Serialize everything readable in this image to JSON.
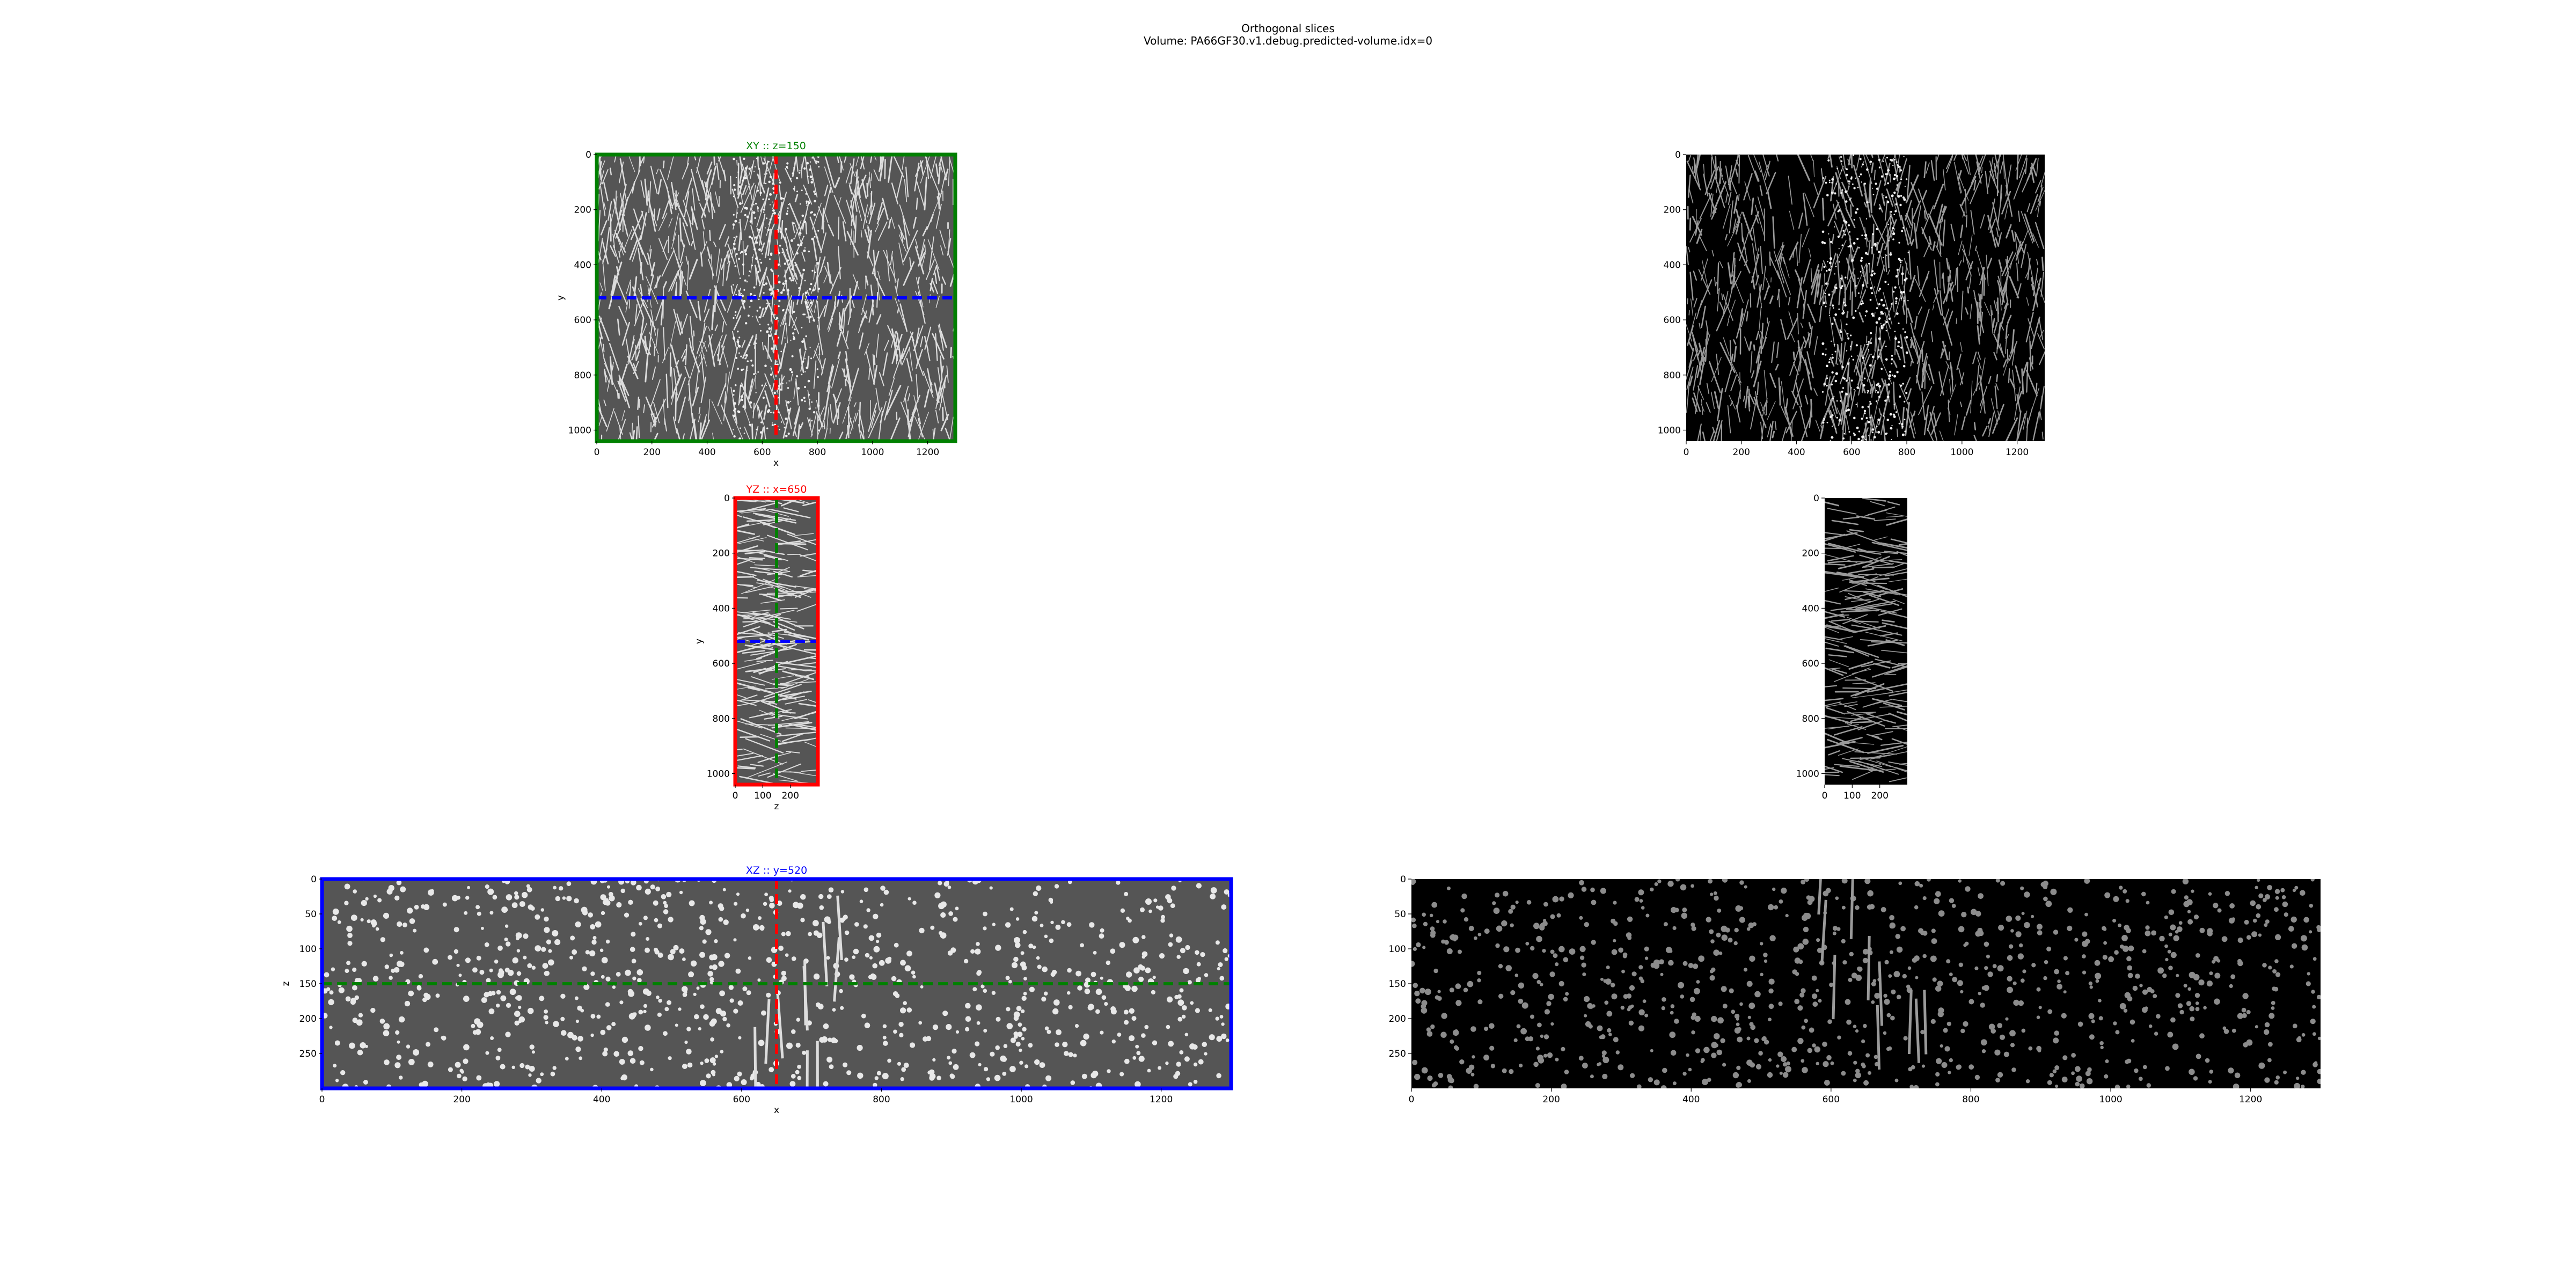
{
  "figure": {
    "title_line1": "Orthogonal slices",
    "title_line2": "Volume: PA66GF30.v1.debug.predicted-volume.idx=0"
  },
  "colors": {
    "xy": "#008000",
    "yz": "#ff0000",
    "xz": "#0000ff",
    "raw_bg": "#555555",
    "pred_bg": "#000000"
  },
  "chart_data": [
    {
      "id": "xy_raw",
      "type": "heatmap",
      "title": "XY :: z=150",
      "title_color": "green",
      "xlabel": "x",
      "ylabel": "y",
      "xlim": [
        0,
        1300
      ],
      "ylim": [
        1040,
        0
      ],
      "xticks": [
        0,
        200,
        400,
        600,
        800,
        1000,
        1200
      ],
      "yticks": [
        0,
        200,
        400,
        600,
        800,
        1000
      ],
      "frame": "green",
      "lines": [
        {
          "orientation": "vertical",
          "value": 650,
          "color": "red",
          "style": "dashed"
        },
        {
          "orientation": "horizontal",
          "value": 520,
          "color": "blue",
          "style": "dashed"
        }
      ]
    },
    {
      "id": "xy_pred",
      "type": "heatmap",
      "title": "",
      "xlabel": "",
      "ylabel": "",
      "xlim": [
        0,
        1300
      ],
      "ylim": [
        1040,
        0
      ],
      "xticks": [
        0,
        200,
        400,
        600,
        800,
        1000,
        1200
      ],
      "yticks": [
        0,
        200,
        400,
        600,
        800,
        1000
      ],
      "frame": "none",
      "lines": []
    },
    {
      "id": "yz_raw",
      "type": "heatmap",
      "title": "YZ :: x=650",
      "title_color": "red",
      "xlabel": "z",
      "ylabel": "y",
      "xlim": [
        0,
        300
      ],
      "ylim": [
        1040,
        0
      ],
      "xticks": [
        0,
        100,
        200
      ],
      "yticks": [
        0,
        200,
        400,
        600,
        800,
        1000
      ],
      "frame": "red",
      "lines": [
        {
          "orientation": "vertical",
          "value": 150,
          "color": "green",
          "style": "dashed"
        },
        {
          "orientation": "horizontal",
          "value": 520,
          "color": "blue",
          "style": "dashed"
        }
      ]
    },
    {
      "id": "yz_pred",
      "type": "heatmap",
      "title": "",
      "xlabel": "",
      "ylabel": "",
      "xlim": [
        0,
        300
      ],
      "ylim": [
        1040,
        0
      ],
      "xticks": [
        0,
        100,
        200
      ],
      "yticks": [
        0,
        200,
        400,
        600,
        800,
        1000
      ],
      "frame": "none",
      "lines": []
    },
    {
      "id": "xz_raw",
      "type": "heatmap",
      "title": "XZ :: y=520",
      "title_color": "blue",
      "xlabel": "x",
      "ylabel": "z",
      "xlim": [
        0,
        1300
      ],
      "ylim": [
        300,
        0
      ],
      "xticks": [
        0,
        200,
        400,
        600,
        800,
        1000,
        1200
      ],
      "yticks": [
        0,
        50,
        100,
        150,
        200,
        250
      ],
      "frame": "blue",
      "lines": [
        {
          "orientation": "vertical",
          "value": 650,
          "color": "red",
          "style": "dashed"
        },
        {
          "orientation": "horizontal",
          "value": 150,
          "color": "green",
          "style": "dashed"
        }
      ]
    },
    {
      "id": "xz_pred",
      "type": "heatmap",
      "title": "",
      "xlabel": "",
      "ylabel": "",
      "xlim": [
        0,
        1300
      ],
      "ylim": [
        300,
        0
      ],
      "xticks": [
        0,
        200,
        400,
        600,
        800,
        1000,
        1200
      ],
      "yticks": [
        0,
        50,
        100,
        150,
        200,
        250
      ],
      "frame": "none",
      "lines": []
    }
  ]
}
